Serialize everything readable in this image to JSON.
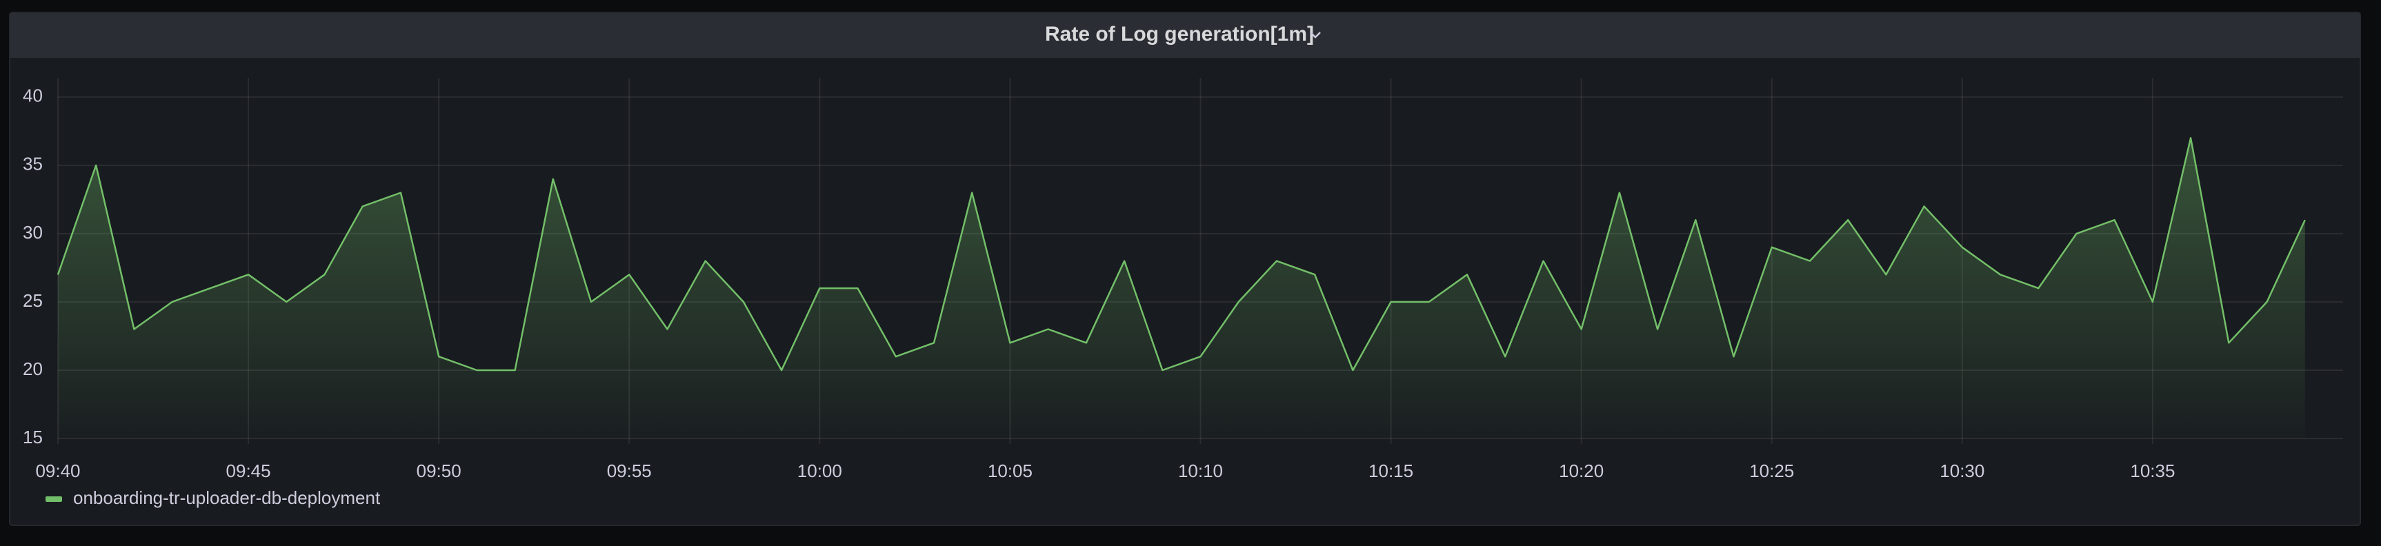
{
  "chart_data": {
    "type": "line",
    "title": "Rate of Log generation[1m]",
    "x": [
      "09:40",
      "09:41",
      "09:42",
      "09:43",
      "09:44",
      "09:45",
      "09:46",
      "09:47",
      "09:48",
      "09:49",
      "09:50",
      "09:51",
      "09:52",
      "09:53",
      "09:54",
      "09:55",
      "09:56",
      "09:57",
      "09:58",
      "09:59",
      "10:00",
      "10:01",
      "10:02",
      "10:03",
      "10:04",
      "10:05",
      "10:06",
      "10:07",
      "10:08",
      "10:09",
      "10:10",
      "10:11",
      "10:12",
      "10:13",
      "10:14",
      "10:15",
      "10:16",
      "10:17",
      "10:18",
      "10:19",
      "10:20",
      "10:21",
      "10:22",
      "10:23",
      "10:24",
      "10:25",
      "10:26",
      "10:27",
      "10:28",
      "10:29",
      "10:30",
      "10:31",
      "10:32",
      "10:33",
      "10:34",
      "10:35",
      "10:36",
      "10:37",
      "10:38",
      "10:39"
    ],
    "series": [
      {
        "name": "onboarding-tr-uploader-db-deployment",
        "color": "#73bf69",
        "values": [
          27,
          35,
          23,
          25,
          26,
          27,
          25,
          27,
          32,
          33,
          21,
          20,
          20,
          34,
          25,
          27,
          23,
          28,
          25,
          20,
          26,
          26,
          21,
          22,
          33,
          22,
          23,
          22,
          28,
          20,
          21,
          25,
          28,
          27,
          20,
          25,
          25,
          27,
          21,
          28,
          23,
          33,
          23,
          31,
          21,
          29,
          28,
          31,
          27,
          32,
          29,
          27,
          26,
          30,
          31,
          25,
          37,
          22,
          25,
          31
        ]
      }
    ],
    "xlim": [
      "09:40",
      "10:40"
    ],
    "xticks": [
      "09:40",
      "09:45",
      "09:50",
      "09:55",
      "10:00",
      "10:05",
      "10:10",
      "10:15",
      "10:20",
      "10:25",
      "10:30",
      "10:35"
    ],
    "ylim": [
      15,
      41
    ],
    "yticks": [
      15,
      20,
      25,
      30,
      35,
      40
    ],
    "grid": true,
    "legend": "bottom"
  }
}
